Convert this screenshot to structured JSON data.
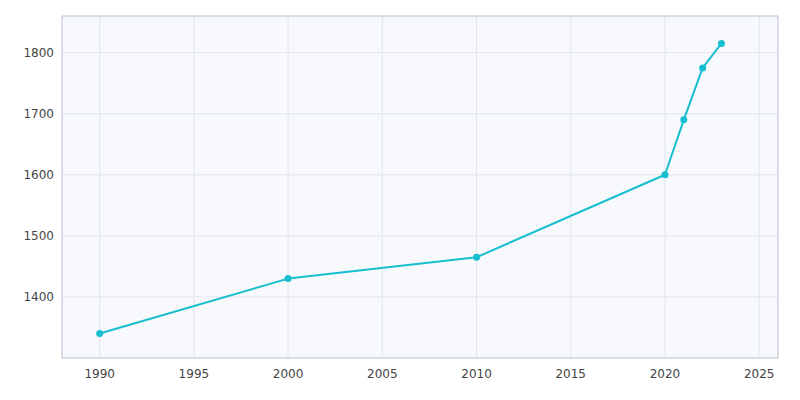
{
  "chart_data": {
    "type": "line",
    "x": [
      1990,
      2000,
      2010,
      2020,
      2021,
      2022,
      2023
    ],
    "values": [
      1340,
      1430,
      1465,
      1600,
      1690,
      1775,
      1815
    ],
    "color": "#17becf",
    "marker": "circle",
    "xlim": [
      1988,
      2026
    ],
    "ylim": [
      1300,
      1860
    ],
    "xticks": [
      1990,
      1995,
      2000,
      2005,
      2010,
      2015,
      2020,
      2025
    ],
    "yticks": [
      1400,
      1500,
      1600,
      1700,
      1800
    ],
    "grid": true
  }
}
